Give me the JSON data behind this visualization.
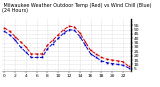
{
  "title": " Milwaukee Weather Outdoor Temp (Red) vs Wind Chill (Blue) (24 Hours)",
  "title_fontsize": 3.5,
  "background_color": "#ffffff",
  "grid_color": "#c0c0c0",
  "temp_color": "#cc0000",
  "wind_chill_color": "#0000cc",
  "marker_color_start": "#000000",
  "hours": [
    0,
    1,
    2,
    3,
    4,
    5,
    6,
    7,
    8,
    9,
    10,
    11,
    12,
    13,
    14,
    15,
    16,
    17,
    18,
    19,
    20,
    21,
    22,
    23
  ],
  "temperature": [
    52,
    48,
    42,
    36,
    30,
    22,
    22,
    22,
    32,
    38,
    44,
    50,
    54,
    53,
    46,
    36,
    26,
    22,
    18,
    16,
    15,
    14,
    13,
    8
  ],
  "wind_chill": [
    48,
    44,
    38,
    30,
    24,
    18,
    18,
    18,
    28,
    34,
    40,
    46,
    50,
    49,
    42,
    32,
    22,
    18,
    14,
    12,
    11,
    10,
    9,
    6
  ],
  "ylim": [
    2,
    62
  ],
  "ytick_vals": [
    5,
    10,
    15,
    20,
    25,
    30,
    35,
    40,
    45,
    50,
    55
  ],
  "ytick_labels": [
    "5",
    "10",
    "15",
    "20",
    "25",
    "30",
    "35",
    "40",
    "45",
    "50",
    "55"
  ],
  "xtick_vals": [
    0,
    2,
    4,
    6,
    8,
    10,
    12,
    14,
    16,
    18,
    20,
    22
  ],
  "xtick_labels": [
    "0",
    "2",
    "4",
    "6",
    "8",
    "10",
    "12",
    "14",
    "16",
    "18",
    "20",
    "22"
  ],
  "tick_fontsize": 3.2,
  "line_width": 0.7,
  "marker_size": 1.2,
  "figwidth": 1.6,
  "figheight": 0.87,
  "dpi": 100
}
